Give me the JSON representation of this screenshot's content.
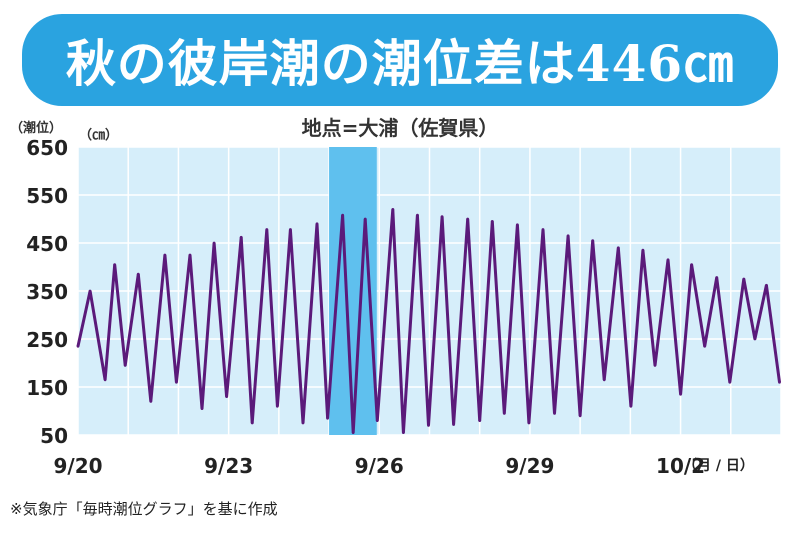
{
  "title": "秋の彼岸潮の潮位差は446㎝",
  "chart_data": {
    "type": "line",
    "subtitle": "地点=大浦（佐賀県）",
    "ylabel": "（潮位）",
    "yunit": "（㎝）",
    "xunit": "（月 / 日）",
    "source_note": "※気象庁「毎時潮位グラフ」を基に作成",
    "ylim": [
      50,
      650
    ],
    "yticks": [
      50,
      150,
      250,
      350,
      450,
      550,
      650
    ],
    "xlim": [
      0,
      14
    ],
    "xticks": [
      {
        "x": 0,
        "label": "9/20"
      },
      {
        "x": 3,
        "label": "9/23"
      },
      {
        "x": 6,
        "label": "9/26"
      },
      {
        "x": 9,
        "label": "9/29"
      },
      {
        "x": 12,
        "label": "10/2"
      }
    ],
    "grid": true,
    "highlight_range": [
      5.0,
      5.95
    ],
    "series": [
      {
        "color": "#5b1a7a",
        "x": [
          0.0,
          0.24,
          0.54,
          0.73,
          0.94,
          1.2,
          1.45,
          1.73,
          1.96,
          2.23,
          2.47,
          2.71,
          2.96,
          3.25,
          3.47,
          3.76,
          3.97,
          4.23,
          4.48,
          4.76,
          4.97,
          5.27,
          5.48,
          5.72,
          5.96,
          6.27,
          6.48,
          6.76,
          6.98,
          7.25,
          7.48,
          7.76,
          8.0,
          8.25,
          8.49,
          8.75,
          8.98,
          9.26,
          9.49,
          9.76,
          10.0,
          10.25,
          10.48,
          10.76,
          11.01,
          11.25,
          11.49,
          11.75,
          12.0,
          12.22,
          12.48,
          12.72,
          12.98,
          13.26,
          13.48,
          13.71,
          13.97
        ],
        "y": [
          235,
          350,
          165,
          405,
          195,
          385,
          120,
          425,
          160,
          425,
          105,
          450,
          130,
          462,
          75,
          478,
          110,
          478,
          75,
          490,
          85,
          508,
          55,
          500,
          80,
          520,
          55,
          508,
          70,
          505,
          72,
          500,
          80,
          495,
          95,
          488,
          75,
          478,
          95,
          465,
          90,
          455,
          165,
          440,
          110,
          435,
          195,
          415,
          135,
          405,
          235,
          378,
          160,
          375,
          250,
          362,
          160
        ]
      }
    ]
  }
}
